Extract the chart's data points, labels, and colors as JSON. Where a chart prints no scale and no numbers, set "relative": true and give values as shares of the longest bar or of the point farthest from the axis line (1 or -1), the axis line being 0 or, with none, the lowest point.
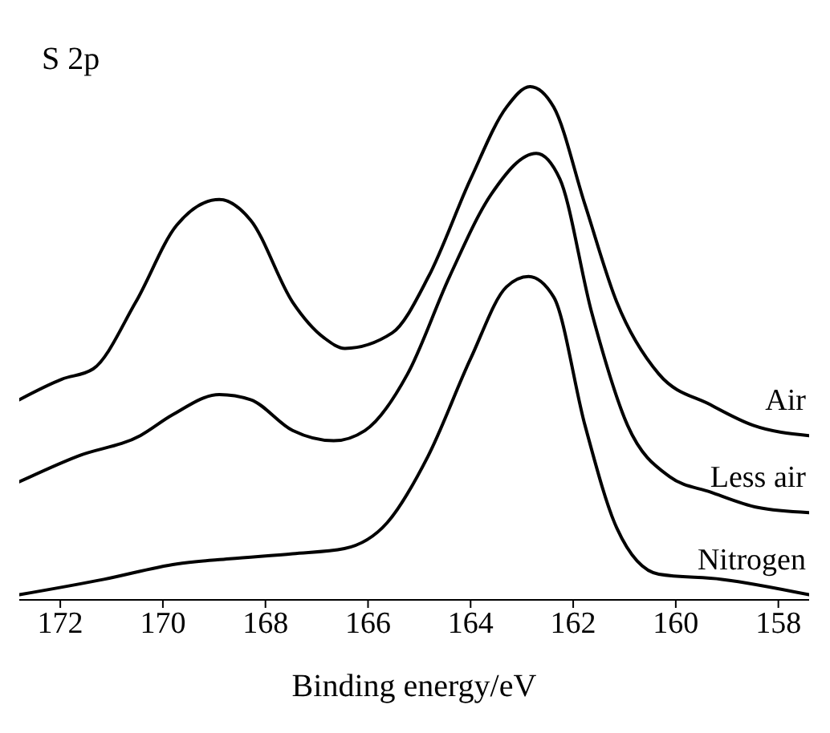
{
  "chart_data": {
    "type": "line",
    "title": "S 2p",
    "xlabel": "Binding energy/eV",
    "relative": true,
    "xlim": [
      172.8,
      157.4
    ],
    "xticks": [
      172,
      170,
      168,
      166,
      164,
      162,
      160,
      158
    ],
    "legend": false,
    "grid": false,
    "marker": "none",
    "line_style": "solid",
    "series": [
      {
        "name": "Air",
        "color": "#000000",
        "x": [
          172.8,
          171.97,
          171.36,
          170.53,
          169.73,
          168.9,
          168.29,
          167.47,
          166.85,
          166.45,
          165.53,
          164.82,
          164.0,
          163.3,
          162.84,
          162.38,
          161.77,
          161.15,
          160.33,
          159.32,
          158.49,
          157.4
        ],
        "values": [
          0.39,
          0.43,
          0.45,
          0.58,
          0.73,
          0.78,
          0.74,
          0.58,
          0.51,
          0.49,
          0.52,
          0.63,
          0.82,
          0.96,
          1.0,
          0.96,
          0.77,
          0.58,
          0.44,
          0.38,
          0.34,
          0.32
        ]
      },
      {
        "name": "Less air",
        "color": "#000000",
        "x": [
          172.8,
          171.66,
          170.44,
          169.82,
          168.9,
          168.29,
          167.47,
          166.67,
          166.06,
          165.23,
          164.41,
          163.6,
          162.72,
          162.26,
          161.64,
          160.94,
          160.12,
          159.32,
          158.4,
          157.4
        ],
        "values": [
          0.23,
          0.28,
          0.32,
          0.36,
          0.4,
          0.39,
          0.33,
          0.31,
          0.33,
          0.44,
          0.63,
          0.79,
          0.87,
          0.82,
          0.56,
          0.34,
          0.24,
          0.21,
          0.18,
          0.17
        ]
      },
      {
        "name": "Nitrogen",
        "color": "#000000",
        "x": [
          172.8,
          171.15,
          169.73,
          168.7,
          167.47,
          166.46,
          165.63,
          164.83,
          164.0,
          163.3,
          162.87,
          162.38,
          161.77,
          161.15,
          160.33,
          159.1,
          157.4
        ],
        "values": [
          0.01,
          0.04,
          0.07,
          0.08,
          0.09,
          0.1,
          0.15,
          0.28,
          0.47,
          0.61,
          0.63,
          0.59,
          0.34,
          0.14,
          0.05,
          0.04,
          0.01
        ]
      }
    ]
  }
}
